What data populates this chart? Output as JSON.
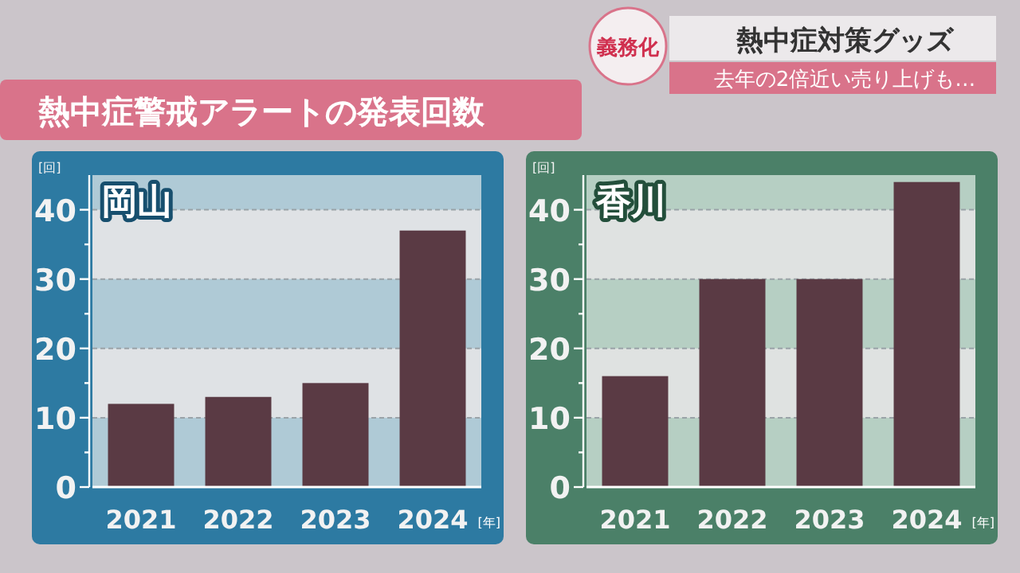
{
  "chart_data": [
    {
      "type": "bar",
      "title": "岡山",
      "annotations": [
        "熱中症警戒アラートの発表回数",
        "義務化",
        "熱中症対策グッズ",
        "去年の2倍近い売り上げも…"
      ],
      "ylabel": "[回]",
      "xlabel": "[年]",
      "categories": [
        "2021",
        "2022",
        "2023",
        "2024"
      ],
      "values": [
        12,
        13,
        15,
        37
      ],
      "color": "#5a3a44",
      "ylim": [
        0,
        45
      ],
      "yticks": [
        0,
        {
          "value": 5,
          "label": null
        },
        10,
        {
          "value": 15,
          "label": null
        },
        20,
        {
          "value": 25,
          "label": null
        },
        30,
        {
          "value": 35,
          "label": null
        },
        40
      ],
      "grid": "y"
    },
    {
      "type": "bar",
      "title": "香川",
      "ylabel": "[回]",
      "xlabel": "[年]",
      "categories": [
        "2021",
        "2022",
        "2023",
        "2024"
      ],
      "values": [
        16,
        30,
        30,
        44
      ],
      "color": "#5a3a44",
      "ylim": [
        0,
        45
      ],
      "yticks": [
        0,
        {
          "value": 5,
          "label": null
        },
        10,
        {
          "value": 15,
          "label": null
        },
        20,
        {
          "value": 25,
          "label": null
        },
        30,
        {
          "value": 35,
          "label": null
        },
        40
      ],
      "grid": "y"
    }
  ]
}
